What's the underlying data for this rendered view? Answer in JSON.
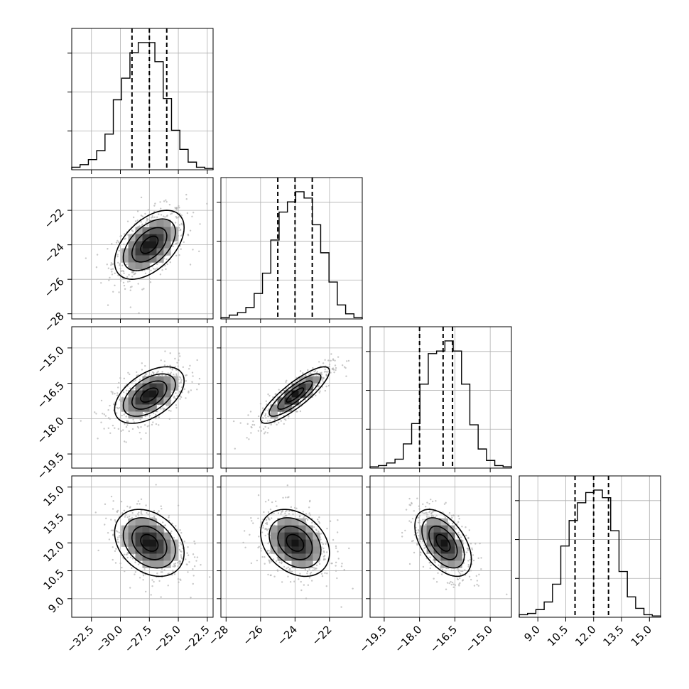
{
  "chart_data": {
    "type": "corner",
    "grid": true,
    "variables": [
      {
        "index": 0,
        "mean": -27.5,
        "sd": 1.5,
        "range": [
          -34.2,
          -22.0
        ],
        "quantiles": [
          -29.0,
          -27.5,
          -26.0
        ],
        "ticks": [
          -32.5,
          -30.0,
          -27.5,
          -25.0,
          -22.5
        ],
        "tick_labels": [
          "−32.5",
          "−30.0",
          "−27.5",
          "−25.0",
          "−22.5"
        ],
        "hist": [
          0.02,
          0.04,
          0.08,
          0.15,
          0.28,
          0.55,
          0.72,
          0.92,
          1.0,
          1.0,
          0.85,
          0.56,
          0.31,
          0.16,
          0.06,
          0.02,
          0.01
        ]
      },
      {
        "index": 1,
        "mean": -24.0,
        "sd": 1.0,
        "range": [
          -28.3,
          -20.1
        ],
        "quantiles": [
          -25.0,
          -24.0,
          -23.0
        ],
        "ticks": [
          -28,
          -26,
          -24,
          -22
        ],
        "tick_labels": [
          "−28",
          "−26",
          "−24",
          "−22"
        ],
        "hist": [
          0.01,
          0.03,
          0.05,
          0.09,
          0.2,
          0.36,
          0.62,
          0.84,
          0.92,
          1.0,
          0.95,
          0.74,
          0.52,
          0.29,
          0.11,
          0.04,
          0.01
        ]
      },
      {
        "index": 2,
        "mean": -17.0,
        "sd": 0.6,
        "range": [
          -20.1,
          -14.1
        ],
        "quantiles": [
          -18.0,
          -17.0,
          -16.6
        ],
        "ticks": [
          -19.5,
          -18.0,
          -16.5,
          -15.0
        ],
        "tick_labels": [
          "−19.5",
          "−18.0",
          "−16.5",
          "−15.0"
        ],
        "hist": [
          0.01,
          0.02,
          0.04,
          0.07,
          0.19,
          0.35,
          0.66,
          0.9,
          0.92,
          1.0,
          0.92,
          0.66,
          0.34,
          0.15,
          0.06,
          0.02,
          0.01
        ]
      },
      {
        "index": 3,
        "mean": 12.0,
        "sd": 0.9,
        "range": [
          8.0,
          15.6
        ],
        "quantiles": [
          11.0,
          12.0,
          12.8
        ],
        "ticks": [
          9.0,
          10.5,
          12.0,
          13.5,
          15.0
        ],
        "tick_labels": [
          "9.0",
          "10.5",
          "12.0",
          "13.5",
          "15.0"
        ],
        "hist": [
          0.02,
          0.03,
          0.06,
          0.12,
          0.26,
          0.56,
          0.76,
          0.9,
          0.98,
          1.0,
          0.94,
          0.68,
          0.36,
          0.16,
          0.07,
          0.02,
          0.01
        ]
      }
    ],
    "correlations": [
      [
        1.0,
        0.5,
        0.5,
        -0.3
      ],
      [
        0.5,
        1.0,
        0.85,
        -0.3
      ],
      [
        0.5,
        0.85,
        1.0,
        -0.5
      ],
      [
        -0.3,
        -0.3,
        -0.5,
        1.0
      ]
    ],
    "contour_levels_sigma": [
      0.5,
      1.0,
      1.5,
      2.0
    ],
    "colors": {
      "line": "#000000",
      "points": "#b0b0b0",
      "grid": "#b0b0b0"
    }
  }
}
